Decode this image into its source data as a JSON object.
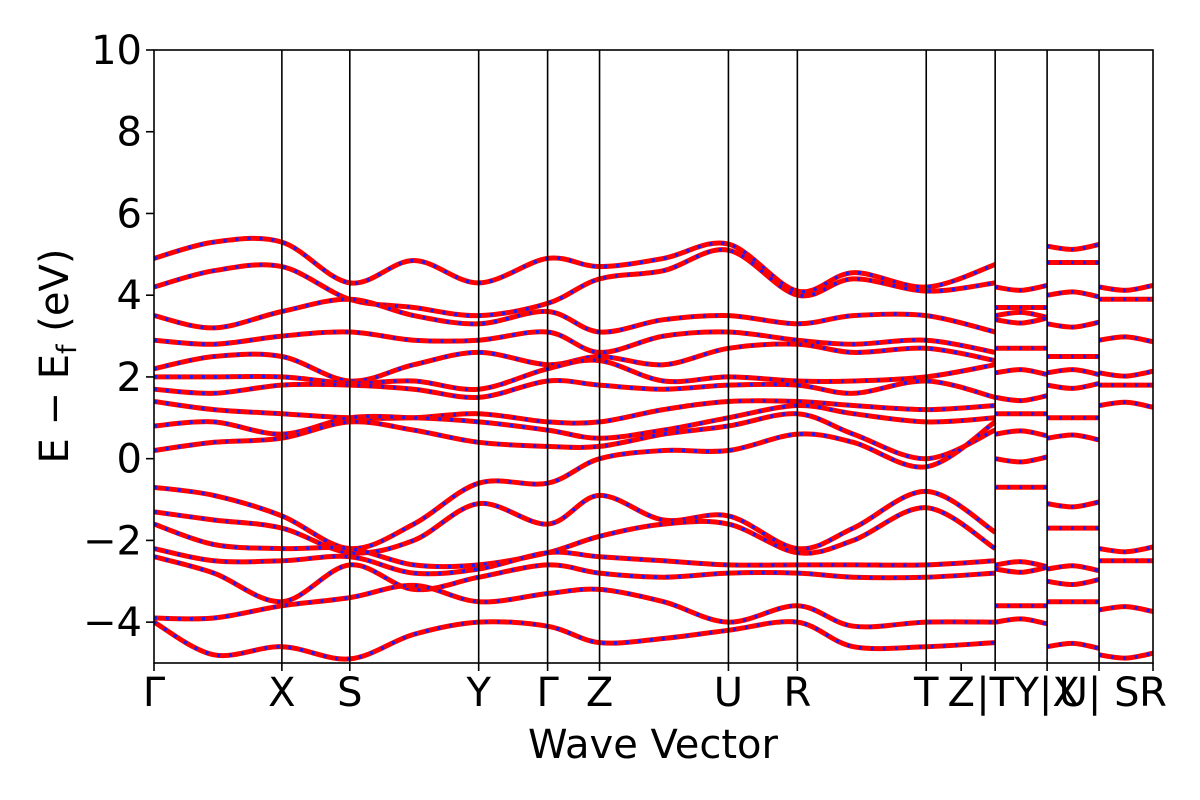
{
  "chart_data": {
    "type": "line",
    "xlabel": "Wave Vector",
    "ylabel": {
      "main": "E  −  E",
      "subscript": "f",
      "unit": " (eV)"
    },
    "ylim": [
      -5,
      10
    ],
    "yticks": [
      "−4",
      "−2",
      "0",
      "2",
      "4",
      "6",
      "8",
      "10"
    ],
    "ytick_values": [
      -4,
      -2,
      0,
      2,
      4,
      6,
      8,
      10
    ],
    "x_kpoints": [
      {
        "label": "Γ",
        "x": 0.0
      },
      {
        "label": "X",
        "x": 0.128
      },
      {
        "label": "S",
        "x": 0.196
      },
      {
        "label": "Y",
        "x": 0.325
      },
      {
        "label": "Γ",
        "x": 0.394
      },
      {
        "label": "Z",
        "x": 0.446
      },
      {
        "label": "U",
        "x": 0.575
      },
      {
        "label": "R",
        "x": 0.644
      },
      {
        "label": "T",
        "x": 0.773
      },
      {
        "label": "Z",
        "x": 0.808
      },
      {
        "label": "|T",
        "x": 0.842
      },
      {
        "label": "Y|X",
        "x": 0.894
      },
      {
        "label": "U| S",
        "x": 0.946
      },
      {
        "label": "R",
        "x": 1.0
      }
    ],
    "segment_boundaries": [
      0.128,
      0.196,
      0.325,
      0.394,
      0.446,
      0.575,
      0.644,
      0.773,
      0.842,
      0.894,
      0.946
    ],
    "xlim": [
      0,
      1
    ],
    "grid": false,
    "legend": "none",
    "series": [
      {
        "color": "#ff0000",
        "style": "solid",
        "bands": [
          {
            "x": [
              0,
              0.06,
              0.128,
              0.196,
              0.26,
              0.325,
              0.394,
              0.446,
              0.51,
              0.575,
              0.644,
              0.7,
              0.773,
              0.842
            ],
            "y": [
              4.9,
              5.3,
              5.3,
              4.3,
              4.85,
              4.3,
              4.9,
              4.7,
              4.9,
              5.25,
              4.1,
              4.55,
              4.2,
              4.75
            ]
          },
          {
            "x": [
              0,
              0.06,
              0.128,
              0.196,
              0.26,
              0.325,
              0.394,
              0.446,
              0.51,
              0.575,
              0.644,
              0.7,
              0.773,
              0.842
            ],
            "y": [
              4.2,
              4.6,
              4.7,
              3.9,
              3.7,
              3.5,
              3.8,
              4.4,
              4.6,
              5.1,
              4.0,
              4.4,
              4.1,
              4.3
            ]
          },
          {
            "x": [
              0,
              0.06,
              0.128,
              0.196,
              0.26,
              0.325,
              0.394,
              0.446,
              0.51,
              0.575,
              0.644,
              0.7,
              0.773,
              0.842
            ],
            "y": [
              3.5,
              3.2,
              3.6,
              3.9,
              3.5,
              3.3,
              3.6,
              3.1,
              3.4,
              3.5,
              3.3,
              3.5,
              3.5,
              3.1
            ]
          },
          {
            "x": [
              0,
              0.06,
              0.128,
              0.196,
              0.26,
              0.325,
              0.394,
              0.446,
              0.51,
              0.575,
              0.644,
              0.7,
              0.773,
              0.842
            ],
            "y": [
              2.9,
              2.8,
              3.0,
              3.1,
              2.9,
              2.9,
              3.1,
              2.6,
              3.0,
              3.1,
              2.9,
              2.8,
              2.9,
              2.6
            ]
          },
          {
            "x": [
              0,
              0.06,
              0.128,
              0.196,
              0.26,
              0.325,
              0.394,
              0.446,
              0.51,
              0.575,
              0.644,
              0.7,
              0.773,
              0.842
            ],
            "y": [
              2.2,
              2.5,
              2.5,
              1.9,
              2.3,
              2.6,
              2.3,
              2.5,
              2.3,
              2.7,
              2.8,
              2.6,
              2.7,
              2.4
            ]
          },
          {
            "x": [
              0,
              0.06,
              0.128,
              0.196,
              0.26,
              0.325,
              0.394,
              0.446,
              0.51,
              0.575,
              0.644,
              0.7,
              0.773,
              0.842
            ],
            "y": [
              2.0,
              2.0,
              2.0,
              1.85,
              1.9,
              1.7,
              2.2,
              2.4,
              1.9,
              2.0,
              1.9,
              1.9,
              2.0,
              2.3
            ]
          },
          {
            "x": [
              0,
              0.06,
              0.128,
              0.196,
              0.26,
              0.325,
              0.394,
              0.446,
              0.51,
              0.575,
              0.644,
              0.7,
              0.773,
              0.842
            ],
            "y": [
              1.7,
              1.6,
              1.8,
              1.8,
              1.7,
              1.5,
              1.9,
              1.8,
              1.7,
              1.8,
              1.8,
              1.6,
              1.9,
              1.5
            ]
          },
          {
            "x": [
              0,
              0.06,
              0.128,
              0.196,
              0.26,
              0.325,
              0.394,
              0.446,
              0.51,
              0.575,
              0.644,
              0.7,
              0.773,
              0.842
            ],
            "y": [
              1.4,
              1.2,
              1.1,
              1.0,
              1.0,
              1.1,
              0.9,
              0.9,
              1.2,
              1.4,
              1.4,
              1.3,
              1.2,
              1.3
            ]
          },
          {
            "x": [
              0,
              0.06,
              0.128,
              0.196,
              0.26,
              0.325,
              0.394,
              0.446,
              0.51,
              0.575,
              0.644,
              0.7,
              0.773,
              0.842
            ],
            "y": [
              0.8,
              0.9,
              0.6,
              1.0,
              1.0,
              0.9,
              0.7,
              0.5,
              0.7,
              1.0,
              1.3,
              1.1,
              0.9,
              1.0
            ]
          },
          {
            "x": [
              0,
              0.06,
              0.128,
              0.196,
              0.26,
              0.325,
              0.394,
              0.446,
              0.51,
              0.575,
              0.644,
              0.7,
              0.773,
              0.842
            ],
            "y": [
              0.2,
              0.4,
              0.5,
              0.9,
              0.7,
              0.4,
              0.3,
              0.3,
              0.6,
              0.8,
              1.1,
              0.6,
              0.0,
              0.7
            ]
          },
          {
            "x": [
              0,
              0.06,
              0.128,
              0.196,
              0.26,
              0.325,
              0.394,
              0.446,
              0.51,
              0.575,
              0.644,
              0.7,
              0.773,
              0.842
            ],
            "y": [
              -0.7,
              -0.9,
              -1.4,
              -2.2,
              -1.6,
              -0.6,
              -0.6,
              0.0,
              0.2,
              0.2,
              0.6,
              0.4,
              -0.2,
              0.9
            ]
          },
          {
            "x": [
              0,
              0.06,
              0.128,
              0.196,
              0.26,
              0.325,
              0.394,
              0.446,
              0.51,
              0.575,
              0.644,
              0.7,
              0.773,
              0.842
            ],
            "y": [
              -1.3,
              -1.5,
              -1.7,
              -2.3,
              -2.0,
              -1.1,
              -1.6,
              -0.9,
              -1.5,
              -1.4,
              -2.2,
              -1.7,
              -0.8,
              -1.8
            ]
          },
          {
            "x": [
              0,
              0.06,
              0.128,
              0.196,
              0.26,
              0.325,
              0.394,
              0.446,
              0.51,
              0.575,
              0.644,
              0.7,
              0.773,
              0.842
            ],
            "y": [
              -1.6,
              -2.1,
              -2.2,
              -2.2,
              -2.6,
              -2.6,
              -2.3,
              -1.9,
              -1.6,
              -1.6,
              -2.3,
              -2.0,
              -1.2,
              -2.2
            ]
          },
          {
            "x": [
              0,
              0.06,
              0.128,
              0.196,
              0.26,
              0.325,
              0.394,
              0.446,
              0.51,
              0.575,
              0.644,
              0.7,
              0.773,
              0.842
            ],
            "y": [
              -2.2,
              -2.5,
              -2.5,
              -2.4,
              -2.8,
              -2.7,
              -2.3,
              -2.4,
              -2.5,
              -2.6,
              -2.6,
              -2.6,
              -2.6,
              -2.5
            ]
          },
          {
            "x": [
              0,
              0.06,
              0.128,
              0.196,
              0.26,
              0.325,
              0.394,
              0.446,
              0.51,
              0.575,
              0.644,
              0.7,
              0.773,
              0.842
            ],
            "y": [
              -2.4,
              -2.8,
              -3.5,
              -2.6,
              -3.2,
              -2.9,
              -2.6,
              -2.8,
              -2.9,
              -2.8,
              -2.8,
              -2.9,
              -2.9,
              -2.8
            ]
          },
          {
            "x": [
              0,
              0.06,
              0.128,
              0.196,
              0.26,
              0.325,
              0.394,
              0.446,
              0.51,
              0.575,
              0.644,
              0.7,
              0.773,
              0.842
            ],
            "y": [
              -3.9,
              -3.9,
              -3.6,
              -3.4,
              -3.1,
              -3.5,
              -3.3,
              -3.2,
              -3.5,
              -4.0,
              -3.6,
              -4.1,
              -4.0,
              -4.0
            ]
          },
          {
            "x": [
              0,
              0.06,
              0.128,
              0.196,
              0.26,
              0.325,
              0.394,
              0.446,
              0.51,
              0.575,
              0.644,
              0.7,
              0.773,
              0.842
            ],
            "y": [
              -4.0,
              -4.8,
              -4.6,
              -4.9,
              -4.3,
              -4.0,
              -4.1,
              -4.5,
              -4.4,
              -4.2,
              -4.0,
              -4.6,
              -4.6,
              -4.5
            ]
          }
        ]
      },
      {
        "color": "#1a1aff",
        "style": "dashed",
        "overlay_of": 0
      }
    ],
    "short_segments": [
      {
        "x0": 0.842,
        "x1": 0.894,
        "ys": [
          4.2,
          3.7,
          3.5,
          3.4,
          2.7,
          2.1,
          1.5,
          1.1,
          0.6,
          0.0,
          -0.7,
          -2.6,
          -2.7,
          -3.6,
          -4.0
        ]
      },
      {
        "x0": 0.894,
        "x1": 0.946,
        "ys": [
          5.2,
          4.8,
          4.0,
          3.3,
          2.5,
          2.1,
          1.8,
          1.0,
          0.5,
          -1.1,
          -1.7,
          -2.7,
          -3.0,
          -3.5,
          -4.6
        ]
      },
      {
        "x0": 0.946,
        "x1": 1.0,
        "ys": [
          4.2,
          3.9,
          2.9,
          2.1,
          1.8,
          1.3,
          -2.2,
          -2.5,
          -3.7,
          -4.8
        ]
      }
    ]
  }
}
